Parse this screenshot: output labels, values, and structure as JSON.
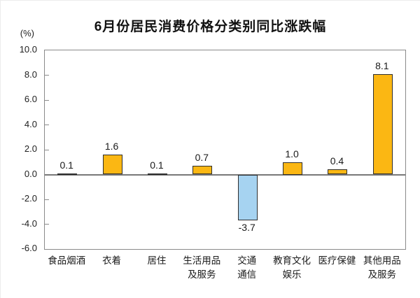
{
  "chart_data": {
    "type": "bar",
    "title": "6月份居民消费价格分类别同比涨跌幅",
    "unit_label": "(%)",
    "categories": [
      "食品烟酒",
      "衣着",
      "居住",
      "生活用品\n及服务",
      "交通\n通信",
      "教育文化\n娱乐",
      "医疗保健",
      "其他用品\n及服务"
    ],
    "values": [
      0.1,
      1.6,
      0.1,
      0.7,
      -3.7,
      1.0,
      0.4,
      8.1
    ],
    "value_labels": [
      "0.1",
      "1.6",
      "0.1",
      "0.7",
      "-3.7",
      "1.0",
      "0.4",
      "8.1"
    ],
    "ylim": [
      -6.0,
      10.0
    ],
    "ytick_step": 2.0,
    "yticks": [
      "10.0",
      "8.0",
      "6.0",
      "4.0",
      "2.0",
      "0.0",
      "-2.0",
      "-4.0",
      "-6.0"
    ],
    "grid": false,
    "legend": "none",
    "colors": {
      "positive_bar": "#FBB713",
      "negative_bar": "#A6D3F1",
      "bar_border": "#2e2e2e",
      "axis": "#8a8a8a",
      "zero_line": "#787878",
      "text": "#1a1a1a"
    }
  }
}
